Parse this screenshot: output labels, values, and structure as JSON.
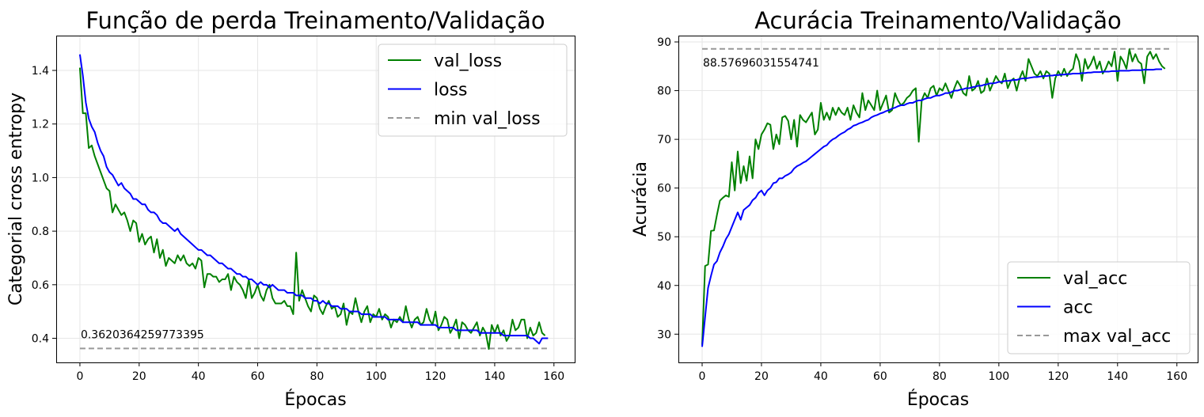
{
  "colors": {
    "val": "#008000",
    "train": "#0000ff",
    "ref": "#999999"
  },
  "chart_data": [
    {
      "type": "line",
      "title": "Função de perda Treinamento/Validação",
      "xlabel": "Épocas",
      "ylabel": "Categorial cross entropy",
      "xlim": [
        -8,
        167
      ],
      "ylim": [
        0.31,
        1.53
      ],
      "xticks": [
        0,
        20,
        40,
        60,
        80,
        100,
        120,
        140,
        160
      ],
      "yticks": [
        0.4,
        0.6,
        0.8,
        1.0,
        1.2,
        1.4
      ],
      "grid": true,
      "legend_position": "upper right",
      "annotation": "0.3620364259773395",
      "reference": {
        "name": "min val_loss",
        "value": 0.3620364259773395,
        "style": "dashed"
      },
      "series": [
        {
          "name": "val_loss",
          "color": "#008000",
          "values": [
            1.41,
            1.24,
            1.24,
            1.11,
            1.12,
            1.08,
            1.05,
            1.02,
            0.99,
            0.96,
            0.95,
            0.87,
            0.9,
            0.88,
            0.86,
            0.87,
            0.84,
            0.8,
            0.84,
            0.83,
            0.76,
            0.79,
            0.75,
            0.77,
            0.78,
            0.72,
            0.77,
            0.7,
            0.73,
            0.67,
            0.7,
            0.69,
            0.68,
            0.71,
            0.69,
            0.71,
            0.68,
            0.67,
            0.68,
            0.66,
            0.7,
            0.69,
            0.59,
            0.64,
            0.64,
            0.63,
            0.63,
            0.61,
            0.62,
            0.62,
            0.64,
            0.58,
            0.63,
            0.61,
            0.6,
            0.58,
            0.55,
            0.62,
            0.55,
            0.57,
            0.6,
            0.56,
            0.54,
            0.58,
            0.6,
            0.55,
            0.53,
            0.53,
            0.53,
            0.54,
            0.52,
            0.52,
            0.49,
            0.72,
            0.54,
            0.58,
            0.55,
            0.52,
            0.5,
            0.56,
            0.55,
            0.51,
            0.49,
            0.52,
            0.54,
            0.51,
            0.52,
            0.48,
            0.49,
            0.53,
            0.45,
            0.5,
            0.49,
            0.55,
            0.5,
            0.46,
            0.5,
            0.52,
            0.46,
            0.49,
            0.48,
            0.51,
            0.47,
            0.49,
            0.48,
            0.44,
            0.47,
            0.46,
            0.48,
            0.46,
            0.52,
            0.47,
            0.44,
            0.47,
            0.48,
            0.45,
            0.46,
            0.51,
            0.47,
            0.45,
            0.5,
            0.43,
            0.45,
            0.48,
            0.47,
            0.42,
            0.44,
            0.47,
            0.4,
            0.46,
            0.45,
            0.43,
            0.42,
            0.44,
            0.46,
            0.41,
            0.44,
            0.42,
            0.36,
            0.45,
            0.42,
            0.45,
            0.41,
            0.43,
            0.39,
            0.41,
            0.47,
            0.43,
            0.44,
            0.47,
            0.47,
            0.4,
            0.44,
            0.41,
            0.42,
            0.46,
            0.42,
            0.41
          ]
        },
        {
          "name": "loss",
          "color": "#0000ff",
          "values": [
            1.46,
            1.38,
            1.28,
            1.22,
            1.19,
            1.17,
            1.13,
            1.1,
            1.08,
            1.04,
            1.02,
            1.01,
            0.99,
            0.97,
            0.98,
            0.96,
            0.95,
            0.94,
            0.92,
            0.92,
            0.91,
            0.9,
            0.9,
            0.88,
            0.87,
            0.87,
            0.86,
            0.84,
            0.83,
            0.83,
            0.82,
            0.81,
            0.8,
            0.81,
            0.79,
            0.78,
            0.77,
            0.76,
            0.75,
            0.74,
            0.73,
            0.73,
            0.72,
            0.71,
            0.71,
            0.7,
            0.69,
            0.68,
            0.68,
            0.67,
            0.66,
            0.66,
            0.65,
            0.64,
            0.64,
            0.63,
            0.63,
            0.62,
            0.62,
            0.61,
            0.6,
            0.61,
            0.6,
            0.6,
            0.59,
            0.6,
            0.59,
            0.58,
            0.58,
            0.58,
            0.57,
            0.57,
            0.57,
            0.56,
            0.56,
            0.56,
            0.55,
            0.55,
            0.55,
            0.54,
            0.54,
            0.53,
            0.54,
            0.53,
            0.53,
            0.52,
            0.52,
            0.52,
            0.51,
            0.51,
            0.51,
            0.5,
            0.5,
            0.5,
            0.5,
            0.49,
            0.49,
            0.49,
            0.49,
            0.48,
            0.48,
            0.48,
            0.48,
            0.48,
            0.47,
            0.47,
            0.47,
            0.47,
            0.47,
            0.46,
            0.46,
            0.46,
            0.46,
            0.46,
            0.46,
            0.45,
            0.45,
            0.45,
            0.45,
            0.45,
            0.45,
            0.44,
            0.44,
            0.44,
            0.44,
            0.44,
            0.44,
            0.43,
            0.43,
            0.43,
            0.43,
            0.43,
            0.43,
            0.43,
            0.43,
            0.42,
            0.42,
            0.42,
            0.42,
            0.42,
            0.42,
            0.42,
            0.42,
            0.41,
            0.41,
            0.41,
            0.41,
            0.41,
            0.41,
            0.41,
            0.41,
            0.41,
            0.4,
            0.4,
            0.39,
            0.38,
            0.4,
            0.4,
            0.4
          ]
        }
      ]
    },
    {
      "type": "line",
      "title": "Acurácia Treinamento/Validação",
      "xlabel": "Épocas",
      "ylabel": "Acurácia",
      "xlim": [
        -8,
        167
      ],
      "ylim": [
        24.2,
        91.3
      ],
      "xticks": [
        0,
        20,
        40,
        60,
        80,
        100,
        120,
        140,
        160
      ],
      "yticks": [
        30,
        40,
        50,
        60,
        70,
        80,
        90
      ],
      "grid": true,
      "legend_position": "lower right",
      "annotation": "88.57696031554741",
      "reference": {
        "name": "max val_acc",
        "value": 88.57696031554741,
        "style": "dashed"
      },
      "series": [
        {
          "name": "val_acc",
          "color": "#008000",
          "values": [
            27.8,
            44.0,
            44.3,
            51.2,
            51.3,
            54.5,
            57.4,
            58.0,
            58.5,
            58.2,
            65.3,
            59.5,
            67.5,
            61.0,
            64.5,
            61.5,
            66.5,
            62.0,
            70.0,
            68.0,
            71.0,
            72.0,
            73.3,
            73.0,
            68.0,
            71.0,
            69.0,
            74.5,
            74.8,
            73.8,
            70.0,
            74.0,
            68.5,
            75.0,
            74.0,
            73.5,
            74.5,
            75.5,
            71.0,
            72.0,
            77.5,
            74.0,
            75.5,
            74.0,
            76.5,
            75.0,
            76.5,
            75.5,
            75.0,
            76.5,
            74.0,
            77.0,
            75.5,
            74.5,
            79.5,
            76.0,
            78.0,
            77.0,
            76.0,
            80.0,
            76.0,
            77.5,
            79.0,
            75.5,
            76.0,
            79.5,
            78.0,
            77.0,
            77.5,
            78.5,
            79.0,
            80.0,
            80.5,
            69.5,
            78.0,
            79.5,
            78.5,
            80.5,
            81.0,
            79.0,
            80.5,
            80.0,
            81.5,
            80.0,
            78.5,
            80.5,
            82.0,
            81.0,
            79.5,
            79.0,
            83.0,
            80.0,
            80.5,
            82.0,
            79.5,
            80.0,
            82.5,
            80.0,
            81.5,
            83.0,
            82.0,
            81.5,
            83.5,
            80.5,
            82.0,
            82.5,
            80.0,
            82.5,
            84.0,
            82.0,
            86.5,
            85.0,
            83.5,
            83.0,
            84.0,
            82.5,
            84.0,
            83.5,
            78.5,
            82.5,
            84.0,
            83.0,
            84.5,
            83.0,
            84.0,
            84.5,
            87.5,
            86.0,
            82.0,
            86.5,
            84.5,
            85.5,
            87.0,
            84.5,
            86.0,
            83.5,
            84.5,
            86.0,
            85.0,
            88.0,
            82.0,
            87.0,
            86.0,
            84.5,
            88.5,
            86.0,
            87.5,
            86.0,
            85.5,
            81.5,
            87.0,
            88.0,
            86.5,
            87.5,
            86.0,
            85.0,
            84.5
          ]
        },
        {
          "name": "acc",
          "color": "#0000ff",
          "values": [
            27.4,
            33.5,
            39.5,
            42.0,
            44.3,
            45.0,
            46.8,
            48.0,
            49.5,
            50.5,
            52.0,
            53.5,
            55.0,
            53.5,
            55.5,
            56.0,
            56.5,
            57.5,
            58.0,
            59.0,
            59.5,
            58.5,
            59.5,
            60.0,
            61.0,
            61.2,
            62.0,
            62.0,
            62.5,
            62.8,
            63.2,
            64.0,
            64.5,
            64.8,
            65.2,
            65.5,
            66.0,
            66.5,
            67.0,
            67.5,
            68.0,
            68.5,
            68.8,
            69.5,
            70.0,
            70.3,
            70.8,
            71.2,
            71.5,
            72.0,
            72.3,
            72.8,
            73.0,
            73.3,
            73.5,
            73.8,
            74.0,
            74.5,
            74.8,
            75.0,
            75.3,
            75.5,
            75.8,
            76.0,
            76.3,
            76.5,
            76.8,
            77.0,
            77.0,
            77.3,
            77.5,
            77.5,
            77.8,
            78.0,
            78.0,
            78.3,
            78.5,
            78.5,
            78.8,
            79.0,
            79.0,
            79.2,
            79.5,
            79.5,
            79.7,
            80.0,
            80.0,
            80.2,
            80.3,
            80.5,
            80.5,
            80.7,
            80.8,
            81.0,
            81.0,
            81.2,
            81.3,
            81.5,
            81.5,
            81.6,
            81.8,
            81.8,
            82.0,
            82.0,
            82.1,
            82.2,
            82.2,
            82.4,
            82.5,
            82.5,
            82.6,
            82.7,
            82.8,
            82.8,
            82.9,
            83.0,
            83.0,
            83.1,
            83.1,
            83.2,
            83.2,
            83.3,
            83.3,
            83.4,
            83.4,
            83.5,
            83.5,
            83.5,
            83.6,
            83.6,
            83.7,
            83.7,
            83.8,
            83.8,
            83.8,
            83.9,
            83.9,
            83.9,
            84.0,
            84.0,
            84.0,
            84.1,
            84.1,
            84.1,
            84.1,
            84.2,
            84.2,
            84.2,
            84.2,
            84.3,
            84.3,
            84.3,
            84.3,
            84.4,
            84.4,
            84.4
          ]
        }
      ]
    }
  ]
}
